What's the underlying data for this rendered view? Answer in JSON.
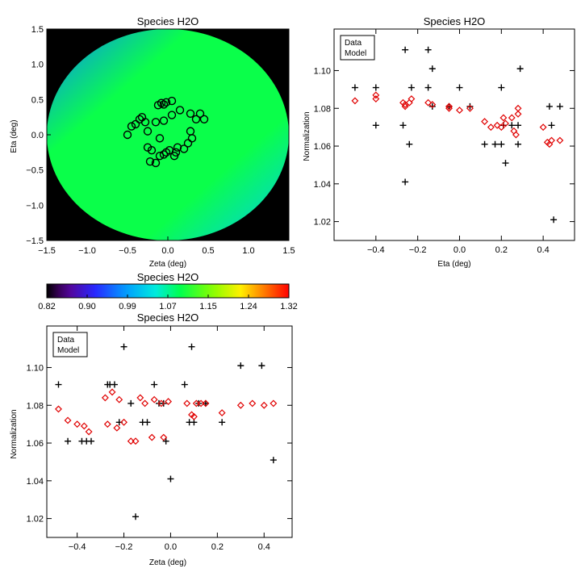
{
  "colors": {
    "data": "#000000",
    "model": "#e00000",
    "circle": "#000000"
  },
  "chart_data": [
    {
      "type": "heatmap",
      "title": "Species H2O",
      "xlabel": "Zeta (deg)",
      "ylabel": "Eta (deg)",
      "xlim": [
        -1.5,
        1.5
      ],
      "ylim": [
        -1.5,
        1.5
      ],
      "xticks": [
        "−1.5",
        "−1.0",
        "−0.5",
        "0.0",
        "0.5",
        "1.0",
        "1.5"
      ],
      "yticks": [
        "−1.5",
        "−1.0",
        "−0.5",
        "0.0",
        "0.5",
        "1.0",
        "1.5"
      ],
      "field_radius": 1.5,
      "field_colormap": "rainbow",
      "field_corner_values": {
        "top_left": 0.97,
        "bottom_right": 1.02,
        "center": 1.1
      },
      "circle_markers": {
        "x": [
          -0.5,
          -0.45,
          -0.4,
          -0.35,
          -0.32,
          -0.28,
          -0.25,
          -0.12,
          -0.08,
          -0.05,
          -0.02,
          0.05,
          -0.15,
          -0.05,
          0.05,
          0.15,
          0.28,
          0.35,
          0.4,
          0.45,
          0.28,
          0.3,
          0.25,
          0.2,
          0.1,
          0.02,
          -0.05,
          -0.1,
          -0.15,
          -0.22,
          -0.25,
          -0.2,
          -0.1,
          -0.02,
          0.08,
          0.12
        ],
        "y": [
          0.0,
          0.12,
          0.15,
          0.22,
          0.25,
          0.18,
          0.05,
          0.42,
          0.45,
          0.43,
          0.46,
          0.48,
          0.18,
          0.2,
          0.28,
          0.35,
          0.3,
          0.22,
          0.3,
          0.22,
          0.05,
          -0.05,
          -0.12,
          -0.2,
          -0.25,
          -0.22,
          -0.28,
          -0.3,
          -0.4,
          -0.38,
          -0.18,
          -0.22,
          -0.05,
          -0.25,
          -0.3,
          -0.18
        ]
      }
    },
    {
      "type": "scatter",
      "title": "Species H2O",
      "xlabel": "Eta (deg)",
      "ylabel": "Normalization",
      "xlim": [
        -0.6,
        0.55
      ],
      "ylim": [
        1.01,
        1.122
      ],
      "xticks": [
        "−0.4",
        "−0.2",
        "0.0",
        "0.2",
        "0.4"
      ],
      "xtick_values": [
        -0.4,
        -0.2,
        0.0,
        0.2,
        0.4
      ],
      "yticks": [
        "1.02",
        "1.04",
        "1.06",
        "1.08",
        "1.10"
      ],
      "ytick_values": [
        1.02,
        1.04,
        1.06,
        1.08,
        1.1
      ],
      "legend": {
        "placement": "top-left",
        "entries": [
          "Data",
          "Model"
        ]
      },
      "series": [
        {
          "name": "Data",
          "marker": "plus",
          "x": [
            -0.5,
            -0.4,
            -0.4,
            -0.27,
            -0.26,
            -0.26,
            -0.24,
            -0.23,
            -0.15,
            -0.15,
            -0.13,
            -0.13,
            -0.05,
            0.0,
            0.05,
            0.12,
            0.17,
            0.2,
            0.2,
            0.22,
            0.21,
            0.25,
            0.28,
            0.28,
            0.29,
            0.43,
            0.44,
            0.45,
            0.48
          ],
          "y": [
            1.091,
            1.091,
            1.071,
            1.071,
            1.111,
            1.041,
            1.061,
            1.091,
            1.111,
            1.091,
            1.101,
            1.081,
            1.081,
            1.091,
            1.081,
            1.061,
            1.061,
            1.061,
            1.091,
            1.051,
            1.071,
            1.071,
            1.061,
            1.071,
            1.101,
            1.081,
            1.071,
            1.021,
            1.081
          ]
        },
        {
          "name": "Model",
          "marker": "diamond",
          "x": [
            -0.5,
            -0.4,
            -0.4,
            -0.27,
            -0.26,
            -0.26,
            -0.24,
            -0.23,
            -0.15,
            -0.13,
            -0.05,
            -0.05,
            0.0,
            0.05,
            0.12,
            0.15,
            0.18,
            0.2,
            0.21,
            0.22,
            0.25,
            0.26,
            0.27,
            0.28,
            0.28,
            0.4,
            0.42,
            0.43,
            0.44,
            0.48
          ],
          "y": [
            1.084,
            1.087,
            1.085,
            1.083,
            1.081,
            1.082,
            1.083,
            1.085,
            1.083,
            1.082,
            1.081,
            1.08,
            1.079,
            1.08,
            1.073,
            1.07,
            1.071,
            1.07,
            1.075,
            1.072,
            1.075,
            1.068,
            1.066,
            1.077,
            1.08,
            1.07,
            1.062,
            1.061,
            1.063,
            1.063
          ]
        }
      ]
    },
    {
      "type": "colorbar",
      "title": "Species H2O",
      "tick_labels": [
        "0.82",
        "0.90",
        "0.99",
        "1.07",
        "1.15",
        "1.24",
        "1.32"
      ],
      "range": [
        0.82,
        1.32
      ],
      "colormap": "rainbow"
    },
    {
      "type": "scatter",
      "title": "Species H2O",
      "xlabel": "Zeta (deg)",
      "ylabel": "Normalization",
      "xlim": [
        -0.53,
        0.52
      ],
      "ylim": [
        1.01,
        1.122
      ],
      "xticks": [
        "−0.4",
        "−0.2",
        "0.0",
        "0.2",
        "0.4"
      ],
      "xtick_values": [
        -0.4,
        -0.2,
        0.0,
        0.2,
        0.4
      ],
      "yticks": [
        "1.02",
        "1.04",
        "1.06",
        "1.08",
        "1.10"
      ],
      "ytick_values": [
        1.02,
        1.04,
        1.06,
        1.08,
        1.1
      ],
      "legend": {
        "placement": "top-left",
        "entries": [
          "Data",
          "Model"
        ]
      },
      "series": [
        {
          "name": "Data",
          "marker": "plus",
          "x": [
            -0.48,
            -0.44,
            -0.38,
            -0.36,
            -0.34,
            -0.27,
            -0.26,
            -0.24,
            -0.22,
            -0.2,
            -0.17,
            -0.15,
            -0.12,
            -0.1,
            -0.07,
            -0.05,
            -0.03,
            -0.02,
            0.0,
            0.06,
            0.08,
            0.09,
            0.1,
            0.12,
            0.15,
            0.22,
            0.3,
            0.39,
            0.44
          ],
          "y": [
            1.091,
            1.061,
            1.061,
            1.061,
            1.061,
            1.091,
            1.091,
            1.091,
            1.071,
            1.111,
            1.081,
            1.021,
            1.071,
            1.071,
            1.091,
            1.081,
            1.081,
            1.061,
            1.041,
            1.091,
            1.071,
            1.111,
            1.071,
            1.081,
            1.081,
            1.071,
            1.101,
            1.101,
            1.051
          ]
        },
        {
          "name": "Model",
          "marker": "diamond",
          "x": [
            -0.48,
            -0.44,
            -0.4,
            -0.37,
            -0.35,
            -0.28,
            -0.27,
            -0.25,
            -0.23,
            -0.22,
            -0.2,
            -0.17,
            -0.15,
            -0.13,
            -0.11,
            -0.08,
            -0.07,
            -0.04,
            -0.03,
            -0.01,
            0.07,
            0.09,
            0.1,
            0.11,
            0.13,
            0.15,
            0.22,
            0.3,
            0.35,
            0.4,
            0.44
          ],
          "y": [
            1.078,
            1.072,
            1.07,
            1.069,
            1.066,
            1.084,
            1.07,
            1.087,
            1.068,
            1.083,
            1.071,
            1.061,
            1.061,
            1.084,
            1.081,
            1.063,
            1.083,
            1.081,
            1.063,
            1.082,
            1.081,
            1.075,
            1.074,
            1.081,
            1.081,
            1.081,
            1.076,
            1.08,
            1.081,
            1.08,
            1.081
          ]
        }
      ]
    }
  ]
}
